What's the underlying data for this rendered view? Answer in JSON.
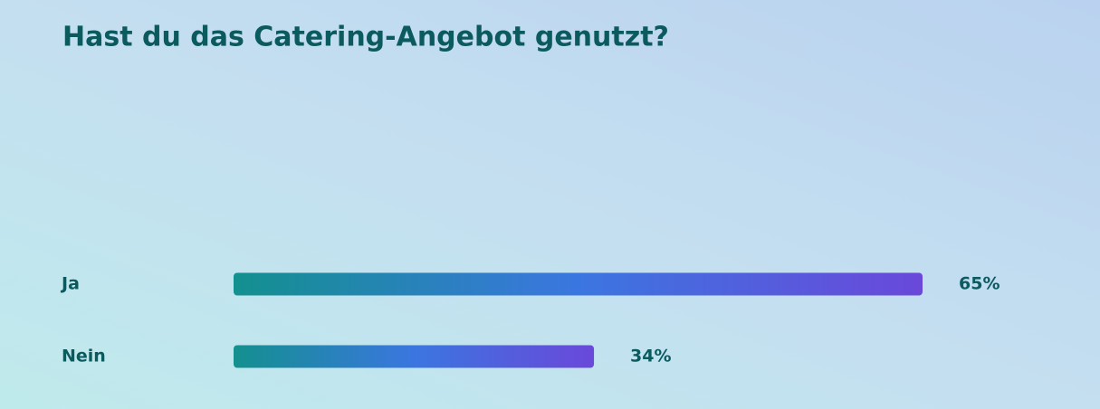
{
  "chart_data": {
    "type": "bar",
    "orientation": "horizontal",
    "title": "Hast du das Catering-Angebot genutzt?",
    "categories": [
      "Ja",
      "Nein"
    ],
    "values": [
      65,
      34
    ],
    "value_labels": [
      "65%",
      "34%"
    ],
    "gradient": [
      "#13908f",
      "#3b76e0",
      "#6a48da"
    ]
  }
}
